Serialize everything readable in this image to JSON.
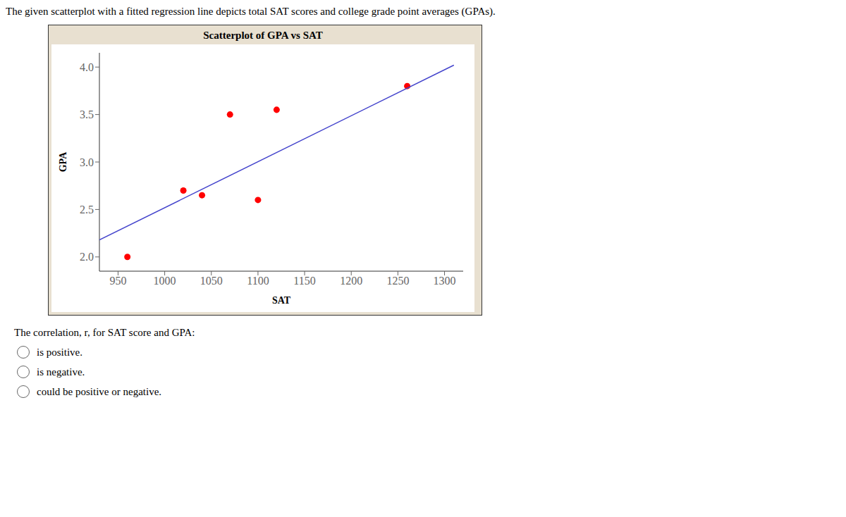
{
  "chart_data": {
    "type": "scatter",
    "title": "Scatterplot of GPA vs SAT",
    "x_label": "SAT",
    "y_label": "GPA",
    "annotations": [
      "The given scatterplot with a fitted regression line depicts total SAT scores and college grade point averages (GPAs).",
      "The correlation, r, for SAT score and GPA:",
      "is positive.",
      "is negative.",
      "could be positive or negative."
    ],
    "series": [
      {
        "type": "scatter",
        "color": "#ff0000",
        "x": [
          960,
          1020,
          1040,
          1070,
          1100,
          1120,
          1260
        ],
        "values": [
          2.0,
          2.7,
          2.65,
          3.5,
          2.6,
          3.55,
          3.8
        ]
      },
      {
        "type": "line",
        "color": "#4444cc",
        "x": [
          930,
          1310
        ],
        "values": [
          2.18,
          4.02
        ]
      }
    ],
    "xlim": [
      930,
      1320
    ],
    "ylim": [
      1.85,
      4.15
    ],
    "xticks": [
      950,
      1000,
      1050,
      1100,
      1150,
      1200,
      1250,
      1300
    ],
    "yticks": [
      {
        "value": 2.0,
        "label": "2.0"
      },
      2.5,
      {
        "value": 3.0,
        "label": "3.0"
      },
      3.5,
      {
        "value": 4.0,
        "label": "4.0"
      }
    ],
    "grid": false
  }
}
